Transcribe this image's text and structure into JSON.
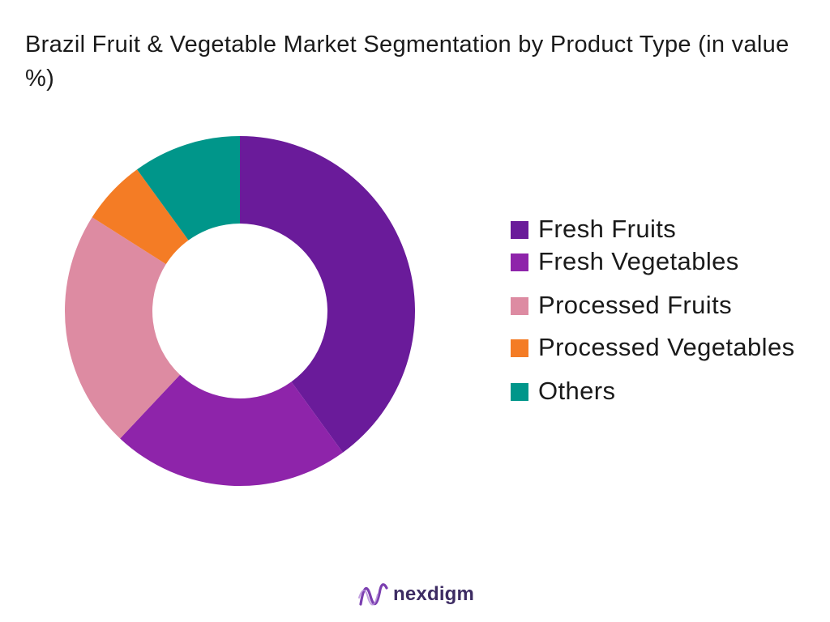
{
  "chart_data": {
    "type": "pie",
    "donut": true,
    "title": "Brazil Fruit & Vegetable Market Segmentation by Product Type (in value %)",
    "categories": [
      "Fresh Fruits",
      "Fresh Vegetables",
      "Processed Fruits",
      "Processed Vegetables",
      "Others"
    ],
    "values": [
      40,
      22,
      22,
      6,
      10
    ],
    "unit": "%",
    "colors": [
      "#6a1b9a",
      "#8e24aa",
      "#dd8ba2",
      "#f47c25",
      "#00968a"
    ],
    "legend_position": "right"
  },
  "logo": {
    "text": "nexdigm",
    "colors": [
      "#7b3fb0",
      "#3d2c63"
    ]
  }
}
